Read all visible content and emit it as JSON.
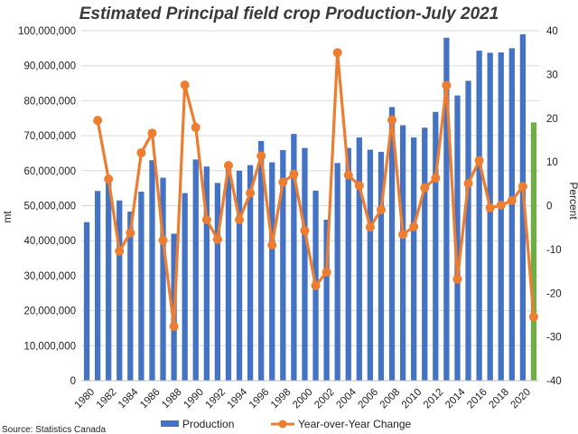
{
  "chart_data": {
    "type": "bar",
    "title": "Estimated Principal field crop Production-July 2021",
    "ylabel": "mt",
    "y2label": "Percent",
    "source": "Source: Statistics Canada",
    "ylim": [
      0,
      100000000
    ],
    "y2lim": [
      -40,
      40
    ],
    "yticks": [
      "0",
      "10,000,000",
      "20,000,000",
      "30,000,000",
      "40,000,000",
      "50,000,000",
      "60,000,000",
      "70,000,000",
      "80,000,000",
      "90,000,000",
      "100,000,000"
    ],
    "y2ticks": [
      "-40",
      "-30",
      "-20",
      "-10",
      "0",
      "10",
      "20",
      "30",
      "40"
    ],
    "x": [
      1980,
      1981,
      1982,
      1983,
      1984,
      1985,
      1986,
      1987,
      1988,
      1989,
      1990,
      1991,
      1992,
      1993,
      1994,
      1995,
      1996,
      1997,
      1998,
      1999,
      2000,
      2001,
      2002,
      2003,
      2004,
      2005,
      2006,
      2007,
      2008,
      2009,
      2010,
      2011,
      2012,
      2013,
      2014,
      2015,
      2016,
      2017,
      2018,
      2019,
      2020,
      2021
    ],
    "xtick_labels": [
      "1980",
      "1982",
      "1984",
      "1986",
      "1988",
      "1990",
      "1992",
      "1994",
      "1996",
      "1998",
      "2000",
      "2002",
      "2004",
      "2006",
      "2008",
      "2010",
      "2012",
      "2014",
      "2016",
      "2018",
      "2020"
    ],
    "grid": true,
    "legend_position": "bottom",
    "colors": {
      "production": "#4472c4",
      "yoy": "#ed7d31",
      "estimate": "#70ad47"
    },
    "series": [
      {
        "name": "Production",
        "type": "bar",
        "axis": "left",
        "values": [
          45300000,
          54200000,
          57500000,
          51500000,
          48300000,
          54000000,
          63000000,
          58000000,
          42000000,
          53600000,
          63200000,
          61200000,
          56500000,
          61700000,
          60000000,
          61600000,
          68500000,
          62400000,
          65900000,
          70500000,
          66500000,
          54300000,
          46000000,
          62200000,
          66500000,
          69500000,
          66000000,
          65400000,
          78200000,
          73000000,
          69500000,
          72300000,
          76800000,
          98000000,
          81500000,
          85700000,
          94300000,
          93700000,
          93800000,
          95000000,
          99000000,
          73800000
        ]
      },
      {
        "name": "Year-over-Year Change",
        "type": "line",
        "axis": "right",
        "values": [
          null,
          19.5,
          6.1,
          -10.4,
          -6.2,
          12.1,
          16.6,
          -7.9,
          -27.6,
          27.6,
          17.9,
          -3.2,
          -7.7,
          9.2,
          -3.2,
          2.9,
          11.4,
          -9.0,
          5.4,
          7.2,
          -5.7,
          -18.3,
          -15.2,
          35.0,
          7.0,
          4.6,
          -4.9,
          -0.9,
          19.6,
          -6.6,
          -4.8,
          4.1,
          6.3,
          27.5,
          -16.8,
          5.1,
          10.3,
          -0.5,
          0.1,
          1.2,
          4.4,
          -25.4
        ]
      }
    ]
  }
}
